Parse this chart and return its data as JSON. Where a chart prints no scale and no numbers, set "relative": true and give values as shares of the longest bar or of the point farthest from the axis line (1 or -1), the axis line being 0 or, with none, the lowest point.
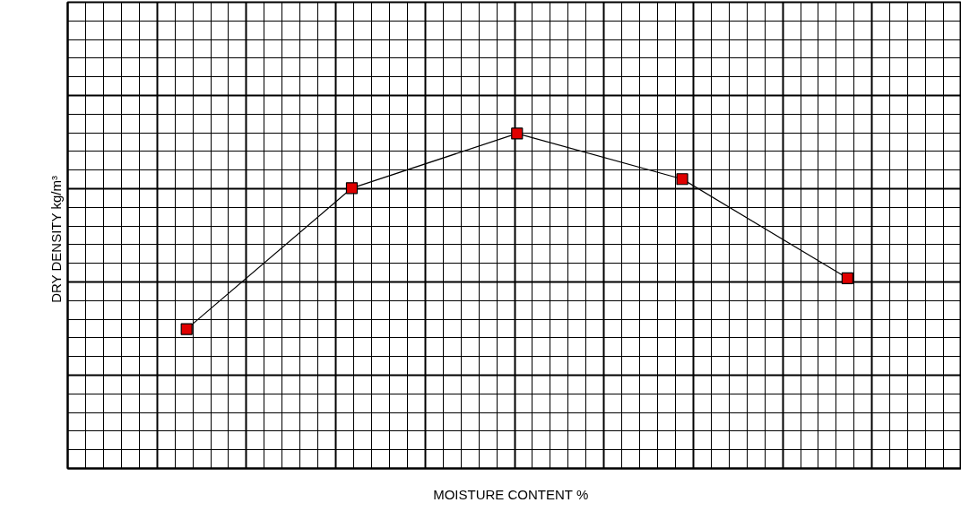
{
  "chart_data": {
    "type": "line",
    "relative": true,
    "xlabel": "MOISTURE CONTENT   %",
    "ylabel": "DRY DENSITY   kg/m³",
    "categories": [
      null,
      null,
      null,
      null,
      null
    ],
    "series": [
      {
        "color": "#000000",
        "colors": [
          "#e00000",
          "#e00000",
          "#e00000",
          "#e00000",
          "#e00000"
        ],
        "values": [
          0.416,
          0.837,
          1,
          0.864,
          0.568
        ]
      }
    ],
    "marker": "square",
    "grid": true
  }
}
